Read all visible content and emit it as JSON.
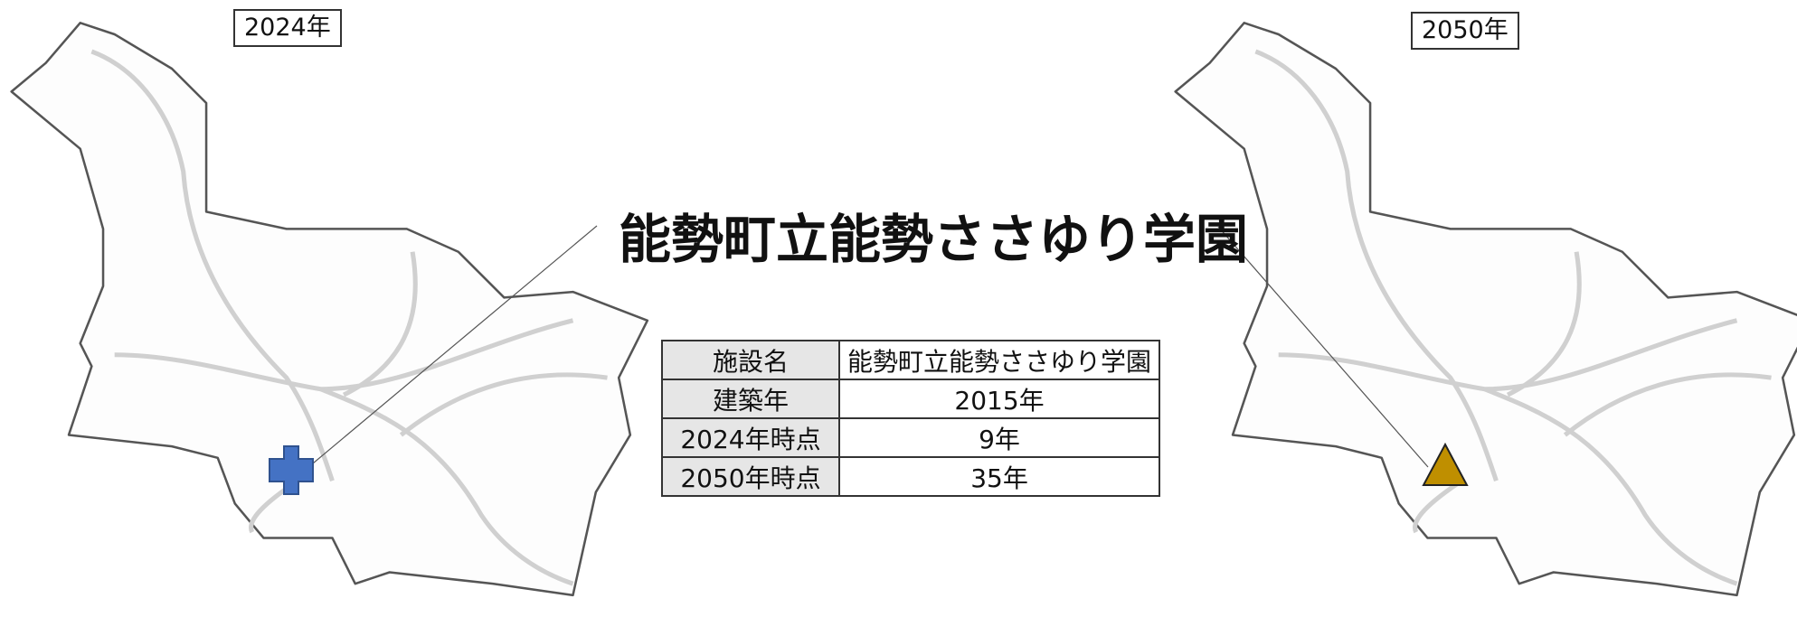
{
  "left_map": {
    "label": "2024年"
  },
  "right_map": {
    "label": "2050年"
  },
  "title": "能勢町立能勢ささゆり学園",
  "table": {
    "rows": [
      [
        "施設名",
        "能勢町立能勢ささゆり学園"
      ],
      [
        "建築年",
        "2015年"
      ],
      [
        "2024年時点",
        "9年"
      ],
      [
        "2050年時点",
        "35年"
      ]
    ]
  }
}
